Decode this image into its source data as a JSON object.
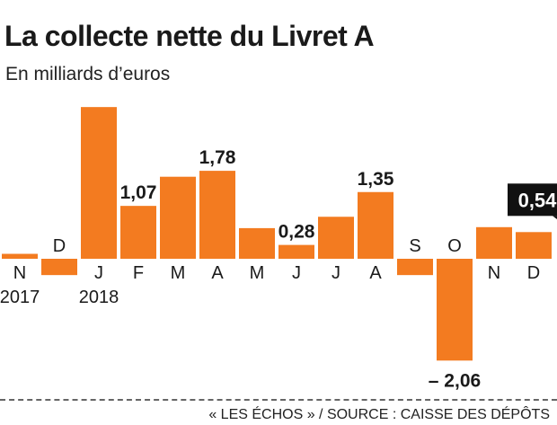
{
  "header": {
    "title": "La collecte nette du Livret A",
    "subtitle": "En milliards d’euros"
  },
  "footer": {
    "source": "« LES ÉCHOS » / SOURCE : CAISSE DES DÉPÔTS"
  },
  "colors": {
    "bar": "#f37b20",
    "text": "#1a1a1a",
    "highlight_bg": "#111111",
    "highlight_text": "#ffffff"
  },
  "chart_data": {
    "type": "bar",
    "title": "La collecte nette du Livret A",
    "subtitle": "En milliards d’euros",
    "xlabel": "",
    "ylabel": "",
    "ylim": [
      -2.3,
      3.5
    ],
    "grid": false,
    "categories": [
      "N",
      "D",
      "J",
      "F",
      "M",
      "A",
      "M",
      "J",
      "J",
      "A",
      "S",
      "O",
      "N",
      "D"
    ],
    "years": [
      {
        "label": "2017",
        "index": 0
      },
      {
        "label": "2018",
        "index": 2
      }
    ],
    "values": [
      0.1,
      -0.33,
      3.07,
      1.07,
      1.66,
      1.78,
      0.62,
      0.28,
      0.85,
      1.35,
      -0.33,
      -2.06,
      0.64,
      0.54
    ],
    "data_labels": [
      {
        "index": 3,
        "text": "1,07"
      },
      {
        "index": 5,
        "text": "1,78"
      },
      {
        "index": 7,
        "text": "0,28"
      },
      {
        "index": 9,
        "text": "1,35"
      },
      {
        "index": 11,
        "text": "– 2,06"
      },
      {
        "index": 13,
        "text": "0,54",
        "highlight": true
      }
    ]
  }
}
